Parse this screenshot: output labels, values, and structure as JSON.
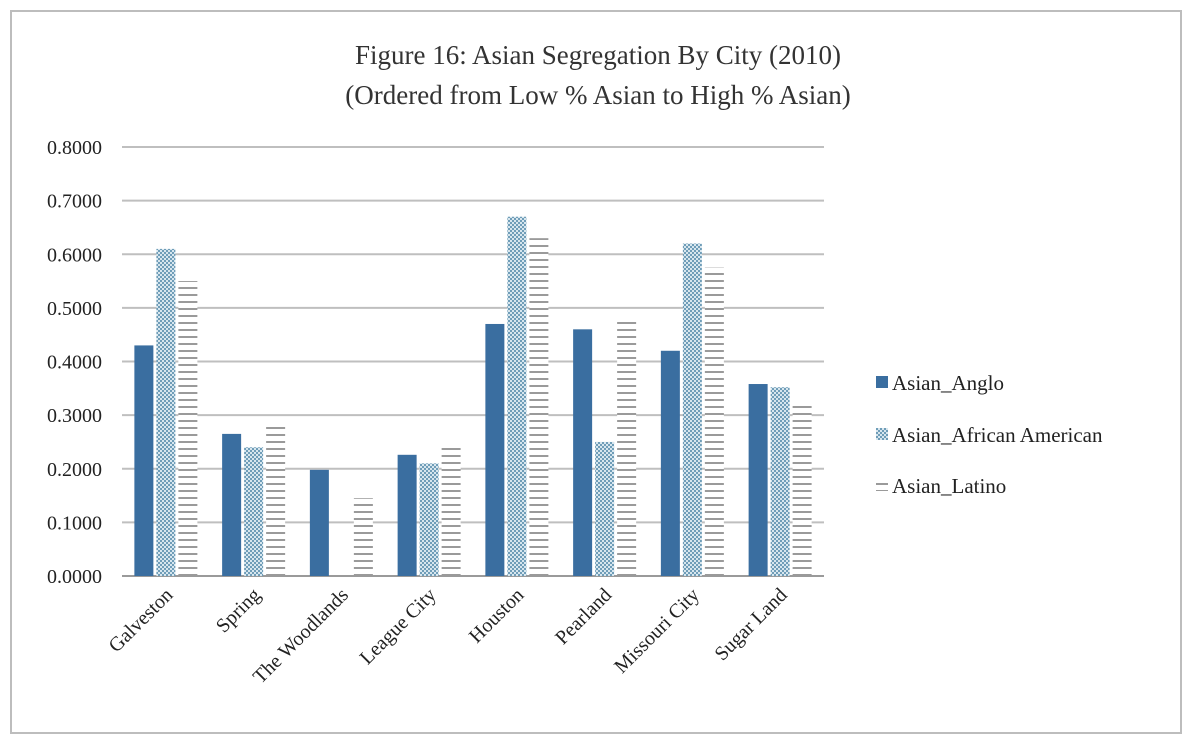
{
  "chart_data": {
    "type": "bar",
    "title": "Figure 16: Asian Segregation By City (2010)",
    "subtitle": "(Ordered from Low % Asian to High % Asian)",
    "categories": [
      "Galveston",
      "Spring",
      "The Woodlands",
      "League City",
      "Houston",
      "Pearland",
      "Missouri City",
      "Sugar Land"
    ],
    "series": [
      {
        "name": "Asian_Anglo",
        "values": [
          0.43,
          0.265,
          0.198,
          0.226,
          0.47,
          0.46,
          0.42,
          0.358
        ],
        "color": "#3a6ea0"
      },
      {
        "name": "Asian_African American",
        "values": [
          0.61,
          0.24,
          0.0,
          0.21,
          0.67,
          0.25,
          0.62,
          0.352
        ],
        "color": "#8fb3c8"
      },
      {
        "name": "Asian_Latino",
        "values": [
          0.55,
          0.28,
          0.145,
          0.24,
          0.63,
          0.475,
          0.575,
          0.32
        ],
        "color": "#b8b8b8"
      }
    ],
    "y_ticks": [
      "0.0000",
      "0.1000",
      "0.2000",
      "0.3000",
      "0.4000",
      "0.5000",
      "0.6000",
      "0.7000",
      "0.8000"
    ],
    "ylim": [
      0,
      0.8
    ],
    "xlabel": "",
    "ylabel": "",
    "grid": true,
    "legend": "right"
  }
}
